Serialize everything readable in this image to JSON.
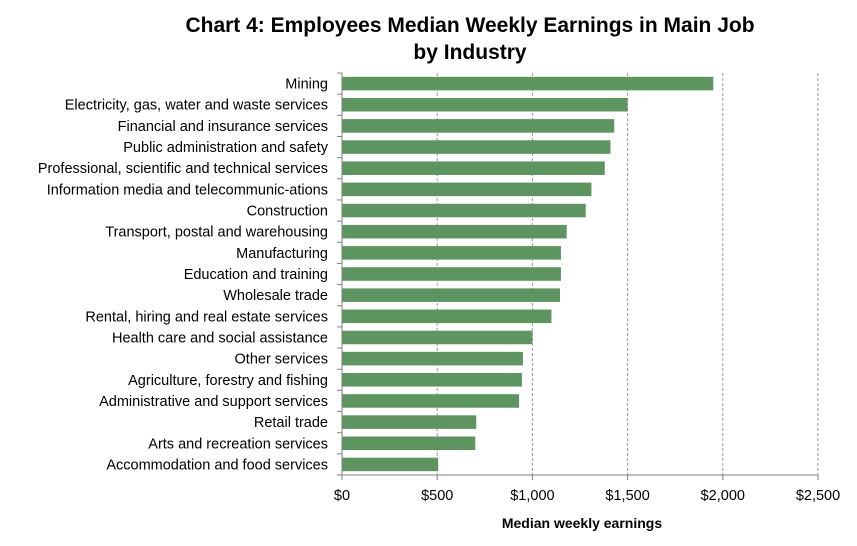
{
  "chart_data": {
    "type": "bar",
    "orientation": "horizontal",
    "title_lines": [
      "Chart 4: Employees Median Weekly Earnings in Main Job",
      "by Industry"
    ],
    "xlabel": "Median weekly earnings",
    "ylabel": "",
    "xlim": [
      0,
      2500
    ],
    "x_ticks": [
      0,
      500,
      1000,
      1500,
      2000,
      2500
    ],
    "x_tick_labels": [
      "$0",
      "$500",
      "$1,000",
      "$1,500",
      "$2,000",
      "$2,500"
    ],
    "grid": "vertical dashed",
    "legend": "none",
    "bar_color": "#5e9460",
    "categories": [
      "Mining",
      "Electricity, gas, water and waste services",
      "Financial and insurance services",
      "Public administration and safety",
      "Professional, scientific and technical services",
      "Information media and telecommunic-ations",
      "Construction",
      "Transport, postal and warehousing",
      "Manufacturing",
      "Education and training",
      "Wholesale trade",
      "Rental, hiring and real estate services",
      "Health care and social assistance",
      "Other services",
      "Agriculture, forestry and fishing",
      "Administrative and support services",
      "Retail trade",
      "Arts and recreation services",
      "Accommodation and food services"
    ],
    "values": [
      1950,
      1500,
      1430,
      1410,
      1380,
      1310,
      1280,
      1180,
      1150,
      1150,
      1145,
      1100,
      1000,
      950,
      945,
      930,
      705,
      700,
      505
    ]
  }
}
